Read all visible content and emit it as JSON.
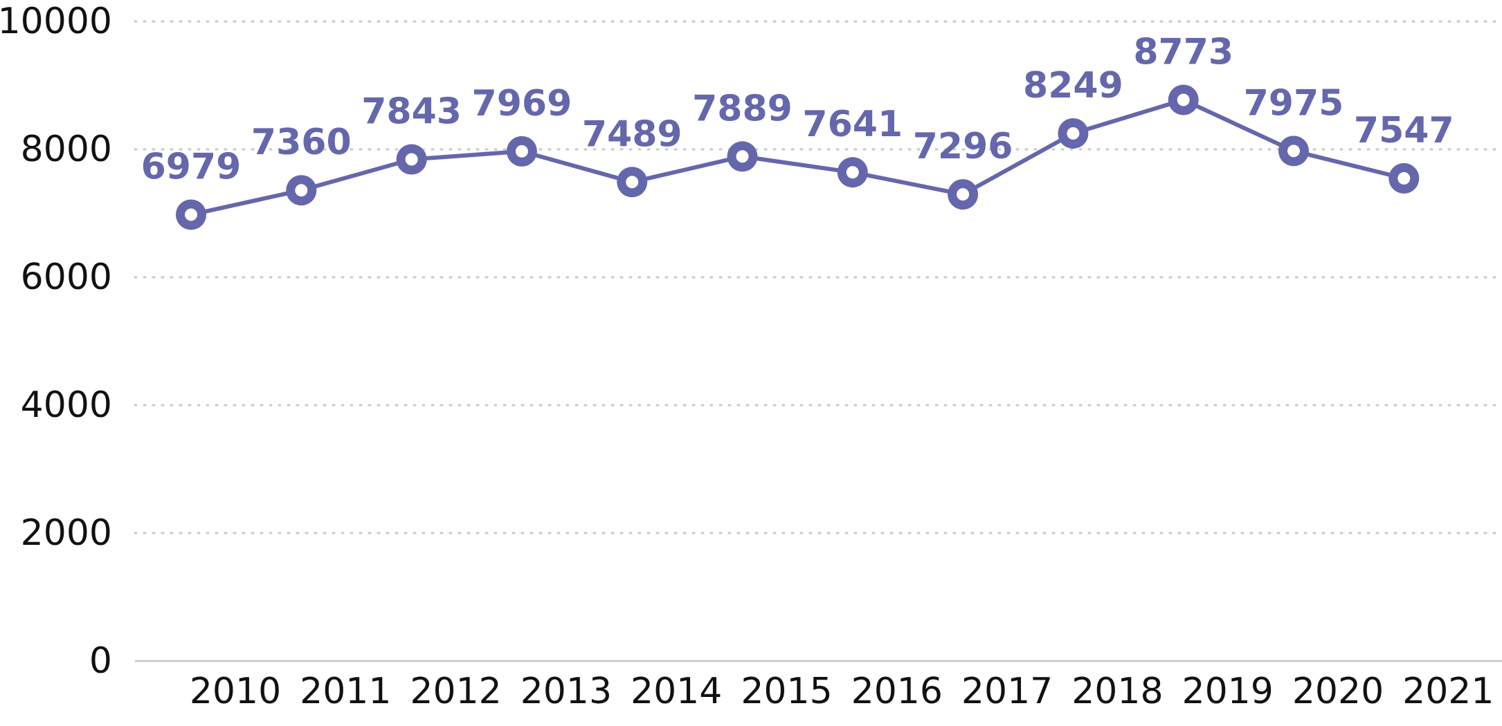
{
  "chart_data": {
    "type": "line",
    "title": "",
    "xlabel": "",
    "ylabel": "",
    "x": [
      "2010",
      "2011",
      "2012",
      "2013",
      "2014",
      "2015",
      "2016",
      "2017",
      "2018",
      "2019",
      "2020",
      "2021"
    ],
    "series": [
      {
        "values": [
          6979,
          7360,
          7843,
          7969,
          7489,
          7889,
          7641,
          7296,
          8249,
          8773,
          7975,
          7547
        ]
      }
    ],
    "ylim": [
      0,
      10000
    ],
    "yticks": [
      "0",
      "2000",
      "4000",
      "6000",
      "8000",
      "10000"
    ],
    "grid": true,
    "legend": "none",
    "data_labels": true,
    "colors": {
      "series": "#6567ac",
      "grid": "#c9c9c9",
      "baseline": "#cccccc",
      "text": "#111111"
    }
  }
}
